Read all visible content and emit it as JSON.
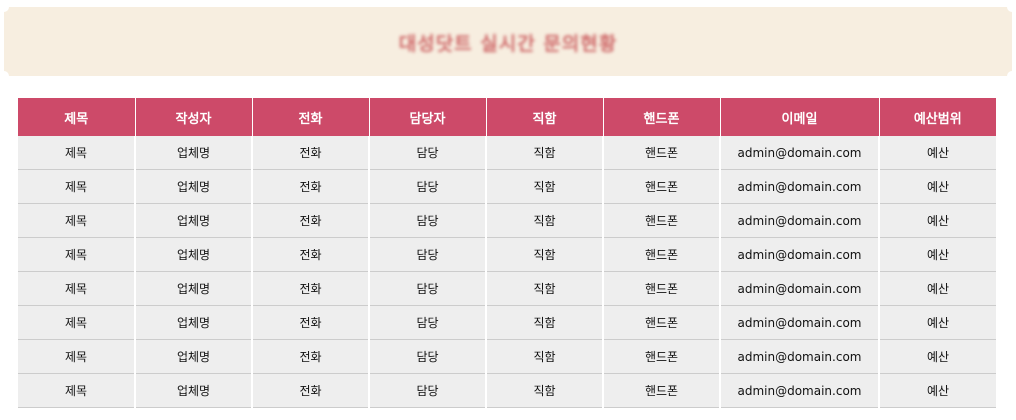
{
  "banner": {
    "title": "대성닷트 실시간 문의현황"
  },
  "colors": {
    "header_bg": "#cd4a69",
    "row_bg": "#eeeeee",
    "banner_bg": "#f7eee0"
  },
  "table": {
    "headers": [
      "제목",
      "작성자",
      "전화",
      "담당자",
      "직함",
      "핸드폰",
      "이메일",
      "예산범위"
    ],
    "rows": [
      [
        "제목",
        "업체명",
        "전화",
        "담당",
        "직함",
        "핸드폰",
        "admin@domain.com",
        "예산"
      ],
      [
        "제목",
        "업체명",
        "전화",
        "담당",
        "직함",
        "핸드폰",
        "admin@domain.com",
        "예산"
      ],
      [
        "제목",
        "업체명",
        "전화",
        "담당",
        "직함",
        "핸드폰",
        "admin@domain.com",
        "예산"
      ],
      [
        "제목",
        "업체명",
        "전화",
        "담당",
        "직함",
        "핸드폰",
        "admin@domain.com",
        "예산"
      ],
      [
        "제목",
        "업체명",
        "전화",
        "담당",
        "직함",
        "핸드폰",
        "admin@domain.com",
        "예산"
      ],
      [
        "제목",
        "업체명",
        "전화",
        "담당",
        "직함",
        "핸드폰",
        "admin@domain.com",
        "예산"
      ],
      [
        "제목",
        "업체명",
        "전화",
        "담당",
        "직함",
        "핸드폰",
        "admin@domain.com",
        "예산"
      ],
      [
        "제목",
        "업체명",
        "전화",
        "담당",
        "직함",
        "핸드폰",
        "admin@domain.com",
        "예산"
      ]
    ]
  }
}
